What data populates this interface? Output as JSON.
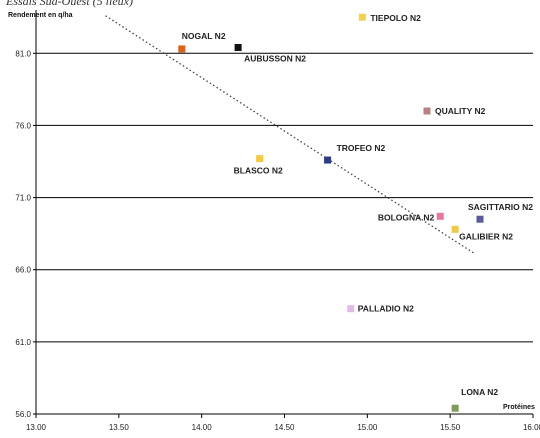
{
  "header": {
    "title": "Essais Sud-Ouest (5 lieux)"
  },
  "chart_data": {
    "type": "scatter",
    "title": "Essais Sud-Ouest (5 lieux)",
    "ylabel": "Rendement en q/ha",
    "xlabel": "Protéines",
    "xlim": [
      13.0,
      16.0
    ],
    "ylim": [
      56.0,
      84.0
    ],
    "x_ticks": [
      "13.00",
      "13.50",
      "14.00",
      "14.50",
      "15.00",
      "15.50",
      "16.00"
    ],
    "y_ticks": [
      "56.0",
      "61.0",
      "66.0",
      "71.0",
      "76.0",
      "81.0"
    ],
    "y_gridlines": [
      61.0,
      66.0,
      71.0,
      76.0,
      81.0
    ],
    "trendline": {
      "style": "dotted",
      "x": [
        13.42,
        15.65
      ],
      "y": [
        83.6,
        67.1
      ]
    },
    "points": [
      {
        "name": "TIEPOLO N2",
        "x": 14.97,
        "y": 83.5,
        "color": "#f5d24a"
      },
      {
        "name": "NOGAL N2",
        "x": 13.88,
        "y": 81.3,
        "color": "#e0601c"
      },
      {
        "name": "AUBUSSON N2",
        "x": 14.22,
        "y": 81.4,
        "color": "#111111"
      },
      {
        "name": "QUALITY N2",
        "x": 15.36,
        "y": 77.0,
        "color": "#b98080"
      },
      {
        "name": "BLASCO N2",
        "x": 14.35,
        "y": 73.7,
        "color": "#f8c840"
      },
      {
        "name": "TROFEO N2",
        "x": 14.76,
        "y": 73.6,
        "color": "#2c3b8a"
      },
      {
        "name": "SAGITTARIO N2",
        "x": 15.68,
        "y": 69.5,
        "color": "#5a5a9c"
      },
      {
        "name": "BOLOGNA N2",
        "x": 15.44,
        "y": 69.7,
        "color": "#e8789a"
      },
      {
        "name": "GALIBIER N2",
        "x": 15.53,
        "y": 68.8,
        "color": "#f2c84a"
      },
      {
        "name": "PALLADIO N2",
        "x": 14.9,
        "y": 63.3,
        "color": "#e2b8e6"
      },
      {
        "name": "LONA N2",
        "x": 15.53,
        "y": 56.4,
        "color": "#7f9a5a"
      }
    ]
  }
}
